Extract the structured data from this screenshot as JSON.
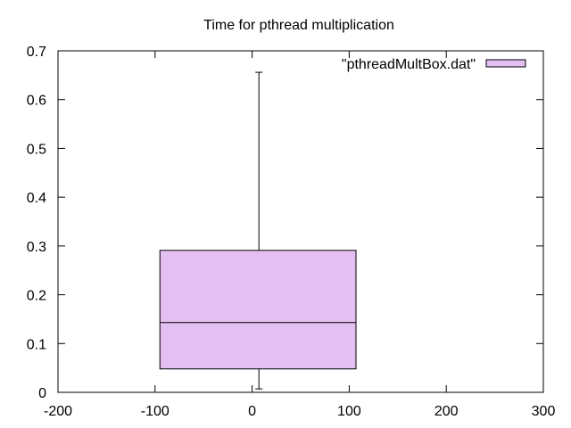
{
  "chart_data": {
    "type": "box",
    "title": "Time for pthread multiplication",
    "xlabel": "",
    "ylabel": "",
    "xlim": [
      -200,
      300
    ],
    "ylim": [
      0,
      0.7
    ],
    "x_ticks": [
      -200,
      -100,
      0,
      100,
      200,
      300
    ],
    "x_tick_labels": [
      "-200",
      "-100",
      "0",
      "100",
      "200",
      "300"
    ],
    "y_ticks": [
      0,
      0.1,
      0.2,
      0.3,
      0.4,
      0.5,
      0.6,
      0.7
    ],
    "y_tick_labels": [
      "0",
      "0.1",
      "0.2",
      "0.3",
      "0.4",
      "0.5",
      "0.6",
      "0.7"
    ],
    "grid": false,
    "legend_position": "top-right",
    "series": [
      {
        "name": "\"pthreadMultBox.dat\"",
        "color": "#e4bff2",
        "boxes": [
          {
            "x_center": 7,
            "x_left": -95,
            "x_right": 107,
            "min": 0.007,
            "q1": 0.048,
            "median": 0.143,
            "q3": 0.291,
            "max": 0.656
          }
        ]
      }
    ]
  }
}
